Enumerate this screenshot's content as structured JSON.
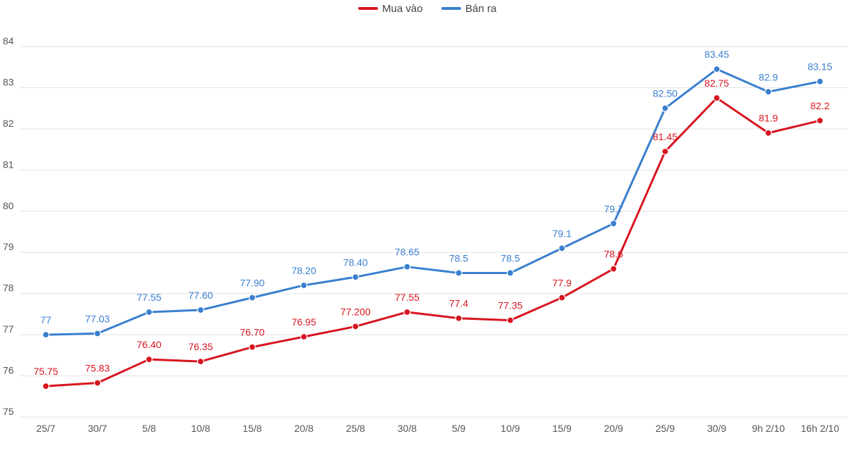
{
  "chart_data": {
    "type": "line",
    "title": "",
    "xlabel": "",
    "ylabel": "",
    "categories": [
      "25/7",
      "30/7",
      "5/8",
      "10/8",
      "15/8",
      "20/8",
      "25/8",
      "30/8",
      "5/9",
      "10/9",
      "15/9",
      "20/9",
      "25/9",
      "30/9",
      "9h 2/10",
      "16h 2/10"
    ],
    "yticks": [
      "75",
      "76",
      "77",
      "78",
      "79",
      "80",
      "81",
      "82",
      "83",
      "84"
    ],
    "ylim": [
      75,
      84
    ],
    "grid": true,
    "legend_position": "top-center",
    "series": [
      {
        "name": "Mua vào",
        "color": "#d7151f",
        "values": [
          75.75,
          75.83,
          76.4,
          76.35,
          76.7,
          76.95,
          77.2,
          77.55,
          77.4,
          77.35,
          77.9,
          78.6,
          81.45,
          82.75,
          81.9,
          82.2
        ],
        "labels": [
          "75.75",
          "75.83",
          "76.40",
          "76.35",
          "76.70",
          "76.95",
          "77.200",
          "77.55",
          "77.4",
          "77.35",
          "77.9",
          "78.6",
          "81.45",
          "82.75",
          "81.9",
          "82.2"
        ]
      },
      {
        "name": "Bán ra",
        "color": "#3a7fcf",
        "values": [
          77,
          77.03,
          77.55,
          77.6,
          77.9,
          78.2,
          78.4,
          78.65,
          78.5,
          78.5,
          79.1,
          79.7,
          82.5,
          83.45,
          82.9,
          83.15
        ],
        "labels": [
          "77",
          "77.03",
          "77.55",
          "77.60",
          "77.90",
          "78.20",
          "78.40",
          "78.65",
          "78.5",
          "78.5",
          "79.1",
          "79.7",
          "82.50",
          "83.45",
          "82.9",
          "83.15"
        ]
      }
    ]
  }
}
